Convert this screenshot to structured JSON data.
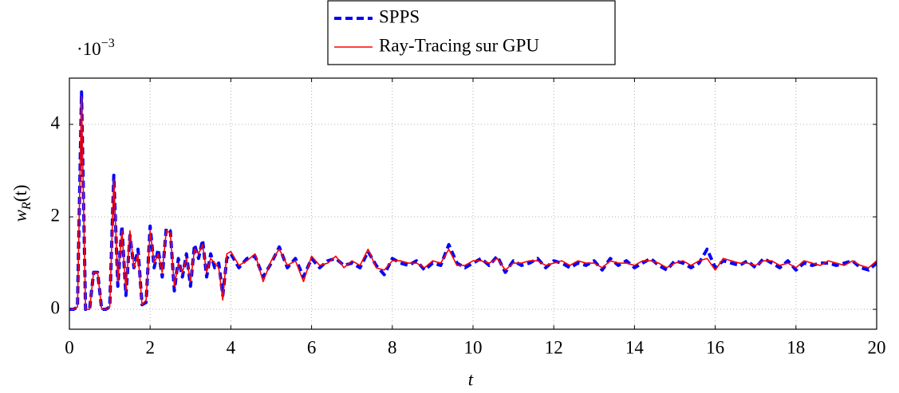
{
  "chart_data": {
    "type": "line",
    "xlabel": "t",
    "ylabel": {
      "main": "w",
      "sub": "R",
      "rest": "(t)"
    },
    "y_multiplier": {
      "base": "·10",
      "exponent": "−3"
    },
    "legend": "north",
    "grid": true,
    "xlim": [
      0,
      20
    ],
    "xticks": [
      0,
      2,
      4,
      6,
      8,
      10,
      12,
      14,
      16,
      18,
      20
    ],
    "ylim": [
      -0.43,
      5.0
    ],
    "yticks": [
      0,
      2,
      4
    ],
    "x": [
      0,
      0.1,
      0.2,
      0.3,
      0.4,
      0.5,
      0.6,
      0.7,
      0.8,
      0.9,
      1.0,
      1.1,
      1.2,
      1.3,
      1.4,
      1.5,
      1.6,
      1.7,
      1.8,
      1.9,
      2.0,
      2.1,
      2.2,
      2.3,
      2.4,
      2.5,
      2.6,
      2.7,
      2.8,
      2.9,
      3.0,
      3.1,
      3.2,
      3.3,
      3.4,
      3.5,
      3.6,
      3.7,
      3.8,
      3.9,
      4.0,
      4.2,
      4.4,
      4.6,
      4.8,
      5.0,
      5.2,
      5.4,
      5.6,
      5.8,
      6.0,
      6.2,
      6.4,
      6.6,
      6.8,
      7.0,
      7.2,
      7.4,
      7.6,
      7.8,
      8.0,
      8.2,
      8.4,
      8.6,
      8.8,
      9.0,
      9.2,
      9.4,
      9.6,
      9.8,
      10.0,
      10.2,
      10.4,
      10.6,
      10.8,
      11.0,
      11.2,
      11.4,
      11.6,
      11.8,
      12.0,
      12.2,
      12.4,
      12.6,
      12.8,
      13.0,
      13.2,
      13.4,
      13.6,
      13.8,
      14.0,
      14.2,
      14.4,
      14.6,
      14.8,
      15.0,
      15.2,
      15.4,
      15.6,
      15.8,
      16.0,
      16.2,
      16.4,
      16.6,
      16.8,
      17.0,
      17.2,
      17.4,
      17.6,
      17.8,
      18.0,
      18.2,
      18.4,
      18.6,
      18.8,
      19.0,
      19.2,
      19.4,
      19.6,
      19.8,
      20.0
    ],
    "series": [
      {
        "name": "SPPS",
        "color": "#0000ff",
        "dashed": true,
        "values": [
          0,
          0,
          0.05,
          4.7,
          0,
          0,
          0.8,
          0.8,
          0,
          0,
          0.05,
          2.9,
          0.5,
          1.8,
          0.3,
          1.6,
          0.9,
          1.3,
          0.1,
          0.15,
          1.8,
          0.9,
          1.3,
          0.7,
          1.75,
          1.7,
          0.4,
          1.1,
          0.7,
          1.2,
          0.5,
          1.4,
          1.1,
          1.5,
          0.7,
          1.2,
          0.9,
          1.0,
          0.3,
          1.1,
          1.2,
          0.9,
          1.1,
          1.15,
          0.7,
          1.0,
          1.35,
          0.9,
          1.1,
          0.7,
          1.1,
          0.9,
          1.05,
          1.1,
          0.95,
          1.0,
          0.9,
          1.25,
          0.95,
          0.75,
          1.1,
          1.0,
          0.95,
          1.05,
          0.85,
          1.0,
          0.95,
          1.4,
          1.0,
          0.9,
          1.0,
          1.1,
          0.95,
          1.15,
          0.8,
          1.05,
          0.95,
          1.0,
          1.1,
          0.9,
          1.05,
          1.0,
          0.9,
          1.0,
          0.95,
          1.05,
          0.85,
          1.1,
          0.95,
          1.05,
          0.9,
          1.0,
          1.1,
          0.95,
          0.85,
          1.05,
          1.0,
          0.9,
          1.0,
          1.3,
          0.9,
          1.05,
          1.0,
          0.95,
          1.05,
          0.9,
          1.1,
          1.0,
          0.9,
          1.05,
          0.85,
          1.0,
          0.95,
          1.0,
          1.0,
          0.95,
          1.0,
          1.05,
          0.9,
          0.85,
          1.0
        ]
      },
      {
        "name": "Ray-Tracing sur GPU",
        "color": "#ff0000",
        "dashed": false,
        "values": [
          0,
          0,
          0.05,
          4.6,
          0,
          0,
          0.8,
          0.8,
          0,
          0,
          0.05,
          2.8,
          0.6,
          1.7,
          0.4,
          1.7,
          0.9,
          1.2,
          0.1,
          0.2,
          1.7,
          1.0,
          1.2,
          0.8,
          1.7,
          1.65,
          0.5,
          1.0,
          0.8,
          1.1,
          0.6,
          1.3,
          1.2,
          1.4,
          0.8,
          1.1,
          1.0,
          0.9,
          0.2,
          1.2,
          1.25,
          0.95,
          1.05,
          1.2,
          0.6,
          1.05,
          1.3,
          0.95,
          1.05,
          0.6,
          1.15,
          0.95,
          1.0,
          1.15,
          0.9,
          1.05,
          0.95,
          1.3,
          0.9,
          0.85,
          1.05,
          1.05,
          1.0,
          1.0,
          0.9,
          1.05,
          1.0,
          1.3,
          0.95,
          0.95,
          1.05,
          1.05,
          1.0,
          1.1,
          0.85,
          1.0,
          1.0,
          1.05,
          1.05,
          0.95,
          1.0,
          1.05,
          0.95,
          1.05,
          1.0,
          1.0,
          0.9,
          1.05,
          1.0,
          1.0,
          0.95,
          1.05,
          1.05,
          1.0,
          0.9,
          1.0,
          1.05,
          0.95,
          1.05,
          1.1,
          0.85,
          1.1,
          1.05,
          1.0,
          1.0,
          0.95,
          1.05,
          1.05,
          0.95,
          1.0,
          0.9,
          1.05,
          1.0,
          0.95,
          1.05,
          1.0,
          0.95,
          1.05,
          0.95,
          0.9,
          1.05
        ]
      }
    ]
  }
}
